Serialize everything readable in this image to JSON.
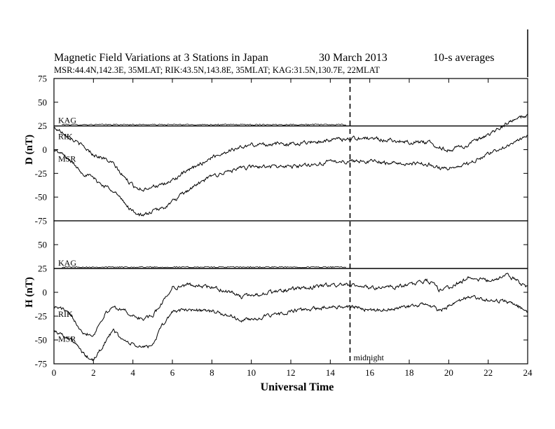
{
  "chart_data": {
    "type": "line",
    "title": "Magnetic Field Variations at 3 Stations in Japan",
    "date": "30 March   2013",
    "averaging": "10-s averages",
    "subtitle": "MSR:44.4N,142.3E, 35MLAT;  RIK:43.5N,143.8E, 35MLAT;  KAG:31.5N,130.7E, 22MLAT",
    "xlabel": "Universal Time",
    "xlim": [
      0,
      24
    ],
    "xticks": [
      "0",
      "2",
      "4",
      "6",
      "8",
      "10",
      "12",
      "14",
      "16",
      "18",
      "20",
      "22",
      "24"
    ],
    "annotation": "midnight",
    "midnight_ut": 15,
    "panels": [
      {
        "component": "D",
        "ylabel": "D (nT)",
        "ylim": [
          -75,
          75
        ],
        "yticks": [
          "75",
          "50",
          "25",
          "0",
          "-25",
          "-50",
          "-75"
        ],
        "baseline": 25,
        "series": [
          {
            "name": "KAG",
            "x": [
              0,
              24
            ],
            "y": [
              25,
              25
            ]
          },
          {
            "name": "RIK",
            "x": [
              0,
              0.5,
              1,
              1.5,
              2,
              2.5,
              3,
              3.5,
              4,
              4.5,
              5,
              5.5,
              6,
              7,
              8,
              9,
              10,
              11,
              12,
              13,
              14,
              15,
              16,
              17,
              18,
              19,
              19.5,
              20,
              21,
              22,
              23,
              24
            ],
            "y": [
              23,
              18,
              10,
              3,
              -5,
              -9,
              -15,
              -28,
              -38,
              -42,
              -38,
              -38,
              -32,
              -20,
              -8,
              0,
              5,
              6,
              6,
              8,
              10,
              12,
              12,
              10,
              8,
              8,
              2,
              0,
              5,
              15,
              28,
              37
            ]
          },
          {
            "name": "MSR",
            "x": [
              0,
              0.5,
              1,
              1.5,
              2,
              2.5,
              3,
              3.5,
              4,
              4.5,
              5,
              5.5,
              6,
              7,
              8,
              9,
              10,
              11,
              12,
              13,
              14,
              15,
              16,
              17,
              18,
              19,
              19.5,
              20,
              21,
              22,
              23,
              24
            ],
            "y": [
              0,
              -6,
              -15,
              -25,
              -30,
              -38,
              -42,
              -55,
              -65,
              -70,
              -65,
              -62,
              -55,
              -40,
              -28,
              -22,
              -18,
              -18,
              -18,
              -16,
              -13,
              -12,
              -12,
              -14,
              -15,
              -15,
              -19,
              -20,
              -15,
              -5,
              5,
              14
            ]
          }
        ]
      },
      {
        "component": "H",
        "ylabel": "H (nT)",
        "ylim": [
          -75,
          75
        ],
        "yticks": [
          "75",
          "50",
          "25",
          "0",
          "-25",
          "-50",
          "-75"
        ],
        "baseline": 25,
        "series": [
          {
            "name": "KAG",
            "x": [
              0,
              24
            ],
            "y": [
              25,
              25
            ]
          },
          {
            "name": "RIK",
            "x": [
              0,
              0.5,
              1,
              1.5,
              2,
              2.5,
              3,
              3.5,
              4,
              4.5,
              5,
              5.5,
              6,
              7,
              8,
              9,
              9.5,
              10,
              11,
              12,
              13,
              14,
              15,
              16,
              17,
              18,
              19,
              19.5,
              20,
              21,
              22,
              23,
              24
            ],
            "y": [
              -15,
              -18,
              -28,
              -42,
              -45,
              -25,
              -15,
              -18,
              -25,
              -28,
              -25,
              -10,
              5,
              8,
              5,
              0,
              -5,
              -3,
              0,
              3,
              5,
              8,
              7,
              5,
              5,
              8,
              12,
              3,
              5,
              15,
              12,
              18,
              5
            ]
          },
          {
            "name": "MSR",
            "x": [
              0,
              0.5,
              1,
              1.5,
              2,
              2.5,
              3,
              3.5,
              4,
              4.5,
              5,
              5.5,
              6,
              7,
              8,
              9,
              9.5,
              10,
              11,
              12,
              13,
              14,
              15,
              16,
              17,
              18,
              19,
              19.5,
              20,
              21,
              22,
              23,
              24
            ],
            "y": [
              -40,
              -45,
              -52,
              -65,
              -72,
              -55,
              -40,
              -50,
              -55,
              -58,
              -55,
              -35,
              -20,
              -18,
              -20,
              -25,
              -30,
              -28,
              -25,
              -20,
              -18,
              -15,
              -15,
              -18,
              -18,
              -15,
              -12,
              -20,
              -15,
              -5,
              -8,
              -10,
              -20
            ]
          }
        ]
      }
    ]
  }
}
